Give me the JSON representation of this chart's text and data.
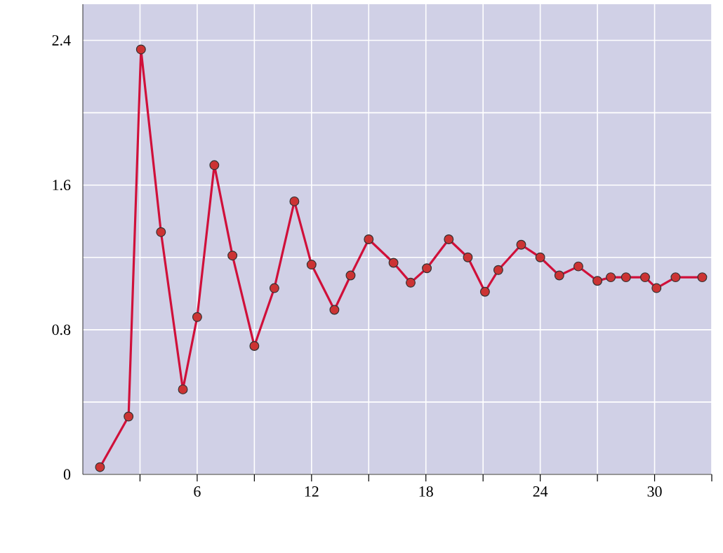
{
  "chart_data": {
    "type": "line",
    "x": [
      0.9,
      2.4,
      3.05,
      4.1,
      5.25,
      6.0,
      6.9,
      7.85,
      9.0,
      10.05,
      11.1,
      12.0,
      13.2,
      14.05,
      15.0,
      16.3,
      17.2,
      18.05,
      19.2,
      20.2,
      21.1,
      21.8,
      23.0,
      24.0,
      25.0,
      26.0,
      27.0,
      27.7,
      28.5,
      29.5,
      30.1,
      31.1,
      32.5
    ],
    "series": [
      {
        "color": "#d0103a",
        "values": [
          0.04,
          0.32,
          2.35,
          1.34,
          0.47,
          0.87,
          1.71,
          1.21,
          0.71,
          1.03,
          1.51,
          1.16,
          0.91,
          1.1,
          1.3,
          1.17,
          1.06,
          1.14,
          1.3,
          1.2,
          1.01,
          1.13,
          1.27,
          1.2,
          1.1,
          1.15,
          1.07,
          1.09,
          1.09,
          1.09,
          1.03,
          1.09,
          1.09
        ]
      }
    ],
    "marker": "circle",
    "line_style": "solid",
    "grid": true,
    "xlim": [
      0,
      33
    ],
    "ylim": [
      0,
      2.6
    ],
    "xticks": [
      {
        "value": 3,
        "label": null
      },
      6,
      {
        "value": 9,
        "label": null
      },
      12,
      {
        "value": 15,
        "label": null
      },
      18,
      {
        "value": 21,
        "label": null
      },
      24,
      {
        "value": 27,
        "label": null
      },
      30,
      {
        "value": 33,
        "label": null
      }
    ],
    "yticks": [
      0,
      {
        "value": 0.4,
        "label": null
      },
      0.8,
      {
        "value": 1.2,
        "label": null
      },
      1.6,
      {
        "value": 2.0,
        "label": null
      },
      2.4
    ]
  }
}
